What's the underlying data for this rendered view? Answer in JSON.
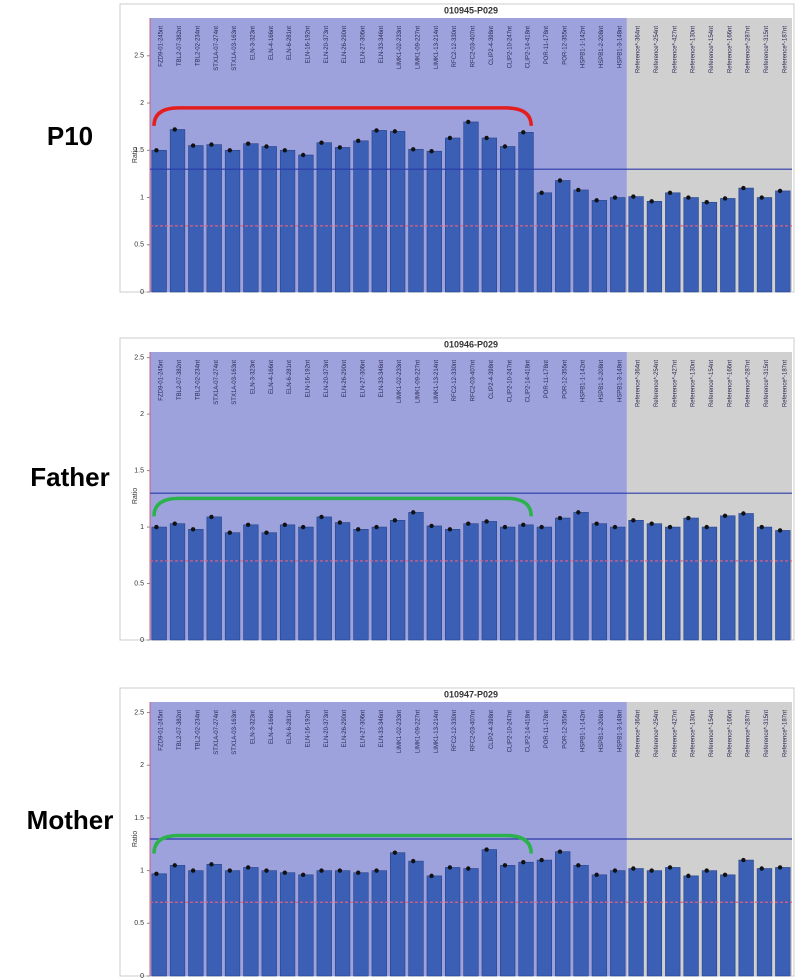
{
  "chart_data": [
    {
      "type": "bar",
      "panel_label": "P10",
      "title": "010945-P029",
      "ylabel": "Ratio",
      "categories": [
        "FZD9-01-245nt",
        "TBL2-07-382nt",
        "TBL2-02-234nt",
        "STX1A-07-274nt",
        "STX1A-03-163nt",
        "ELN-3-323nt",
        "ELN-4-166nt",
        "ELN-6-281nt",
        "ELN-16-192nt",
        "ELN-20-373nt",
        "ELN-26-290nt",
        "ELN-27-306nt",
        "ELN-33-346nt",
        "LIMK1-02-233nt",
        "LIMK1-09-227nt",
        "LIMK1-13-214nt",
        "RFC2-12-330nt",
        "RFC2-03-407nt",
        "CLIP2-4-398nt",
        "CLIP2-10-247nt",
        "CLIP2-14-418nt",
        "POR-11-178nt",
        "POR-12-355nt",
        "HSPB1-1-142nt",
        "HSPB1-2-208nt",
        "HSPB1-3-148nt",
        "Reference*-364nt",
        "Reference*-254nt",
        "Reference*-427nt",
        "Reference*-130nt",
        "Reference*-154nt",
        "Reference*-166nt",
        "Reference*-287nt",
        "Reference*-315nt",
        "Reference*-187nt"
      ],
      "values": [
        1.5,
        1.72,
        1.55,
        1.56,
        1.5,
        1.57,
        1.54,
        1.5,
        1.45,
        1.58,
        1.53,
        1.6,
        1.71,
        1.7,
        1.51,
        1.49,
        1.63,
        1.8,
        1.63,
        1.54,
        1.69,
        1.05,
        1.18,
        1.08,
        0.97,
        1.0,
        1.01,
        0.96,
        1.05,
        1.0,
        0.95,
        0.99,
        1.1,
        1.0,
        1.07
      ],
      "color": "#3a5fb5",
      "ylim": [
        0,
        2.9
      ],
      "yticks": [
        0,
        0.5,
        1,
        1.5,
        2,
        2.5
      ],
      "thresholds": [
        {
          "value": 0.7,
          "color": "#e06080"
        },
        {
          "value": 1.3,
          "color": "#2a3aa8"
        }
      ],
      "regions": [
        {
          "from": 0,
          "to": 25,
          "color": "#9ea2dc"
        },
        {
          "from": 26,
          "to": 34,
          "color": "#d0d0d0"
        }
      ],
      "bracket": {
        "from": 0,
        "to": 20,
        "color": "#e41e1e"
      }
    },
    {
      "type": "bar",
      "panel_label": "Father",
      "title": "010946-P029",
      "ylabel": "Ratio",
      "categories": [
        "FZD9-01-245nt",
        "TBL2-07-382nt",
        "TBL2-02-234nt",
        "STX1A-07-274nt",
        "STX1A-03-163nt",
        "ELN-3-323nt",
        "ELN-4-166nt",
        "ELN-6-281nt",
        "ELN-16-192nt",
        "ELN-20-373nt",
        "ELN-26-290nt",
        "ELN-27-306nt",
        "ELN-33-346nt",
        "LIMK1-02-233nt",
        "LIMK1-09-227nt",
        "LIMK1-13-214nt",
        "RFC2-12-330nt",
        "RFC2-03-407nt",
        "CLIP2-4-398nt",
        "CLIP2-10-247nt",
        "CLIP2-14-418nt",
        "POR-11-178nt",
        "POR-12-355nt",
        "HSPB1-1-142nt",
        "HSPB1-2-208nt",
        "HSPB1-3-148nt",
        "Reference*-364nt",
        "Reference*-254nt",
        "Reference*-427nt",
        "Reference*-130nt",
        "Reference*-154nt",
        "Reference*-166nt",
        "Reference*-287nt",
        "Reference*-315nt",
        "Reference*-187nt"
      ],
      "values": [
        1.0,
        1.03,
        0.98,
        1.09,
        0.95,
        1.02,
        0.95,
        1.02,
        1.0,
        1.09,
        1.04,
        0.98,
        1.0,
        1.06,
        1.13,
        1.01,
        0.98,
        1.03,
        1.05,
        1.0,
        1.02,
        1.0,
        1.08,
        1.13,
        1.03,
        1.0,
        1.06,
        1.03,
        1.0,
        1.08,
        1.0,
        1.1,
        1.12,
        1.0,
        0.97
      ],
      "color": "#3a5fb5",
      "ylim": [
        0,
        2.55
      ],
      "yticks": [
        0,
        0.5,
        1,
        1.5,
        2,
        2.5
      ],
      "thresholds": [
        {
          "value": 0.7,
          "color": "#e06080"
        },
        {
          "value": 1.3,
          "color": "#2a3aa8"
        }
      ],
      "regions": [
        {
          "from": 0,
          "to": 25,
          "color": "#9ea2dc"
        },
        {
          "from": 26,
          "to": 34,
          "color": "#d0d0d0"
        }
      ],
      "bracket": {
        "from": 0,
        "to": 20,
        "color": "#2bb24c"
      }
    },
    {
      "type": "bar",
      "panel_label": "Mother",
      "title": "010947-P029",
      "ylabel": "Ratio",
      "categories": [
        "FZD9-01-245nt",
        "TBL2-07-382nt",
        "TBL2-02-234nt",
        "STX1A-07-274nt",
        "STX1A-03-163nt",
        "ELN-3-323nt",
        "ELN-4-166nt",
        "ELN-6-281nt",
        "ELN-16-192nt",
        "ELN-20-373nt",
        "ELN-26-290nt",
        "ELN-27-306nt",
        "ELN-33-346nt",
        "LIMK1-02-233nt",
        "LIMK1-09-227nt",
        "LIMK1-13-214nt",
        "RFC2-12-330nt",
        "RFC2-03-407nt",
        "CLIP2-4-398nt",
        "CLIP2-10-247nt",
        "CLIP2-14-418nt",
        "POR-11-178nt",
        "POR-12-355nt",
        "HSPB1-1-142nt",
        "HSPB1-2-208nt",
        "HSPB1-3-148nt",
        "Reference*-364nt",
        "Reference*-254nt",
        "Reference*-427nt",
        "Reference*-130nt",
        "Reference*-154nt",
        "Reference*-166nt",
        "Reference*-287nt",
        "Reference*-315nt",
        "Reference*-187nt"
      ],
      "values": [
        0.97,
        1.05,
        1.0,
        1.06,
        1.0,
        1.03,
        1.0,
        0.98,
        0.96,
        1.0,
        1.0,
        0.98,
        1.0,
        1.17,
        1.09,
        0.95,
        1.03,
        1.02,
        1.2,
        1.05,
        1.08,
        1.1,
        1.18,
        1.05,
        0.96,
        1.0,
        1.02,
        1.0,
        1.03,
        0.95,
        1.0,
        0.96,
        1.1,
        1.02,
        1.03
      ],
      "color": "#3a5fb5",
      "ylim": [
        0,
        2.6
      ],
      "yticks": [
        0,
        0.5,
        1,
        1.5,
        2,
        2.5
      ],
      "thresholds": [
        {
          "value": 0.7,
          "color": "#e06080"
        },
        {
          "value": 1.3,
          "color": "#2a3aa8"
        }
      ],
      "regions": [
        {
          "from": 0,
          "to": 25,
          "color": "#9ea2dc"
        },
        {
          "from": 26,
          "to": 34,
          "color": "#d0d0d0"
        }
      ],
      "bracket": {
        "from": 0,
        "to": 20,
        "color": "#2bb24c"
      }
    }
  ]
}
